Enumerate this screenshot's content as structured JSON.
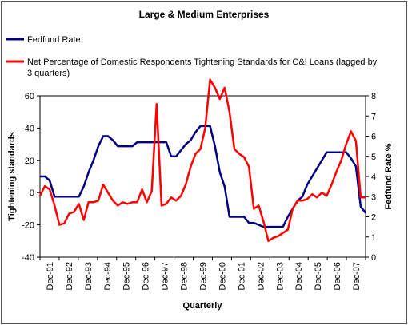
{
  "chart_data": {
    "type": "line",
    "title": "Large & Medium Enterprises",
    "xlabel": "Quarterly",
    "ylabel": "Tightening standards",
    "y2label": "Fedfund Rate %",
    "ylim": [
      -40,
      60
    ],
    "y2lim": [
      0,
      8
    ],
    "yticks": [
      -40,
      -20,
      0,
      20,
      40,
      60
    ],
    "y2ticks": [
      0,
      1,
      2,
      3,
      4,
      5,
      6,
      7,
      8
    ],
    "x_tick_labels": [
      "Dec-91",
      "Dec-92",
      "Dec-93",
      "Dec-94",
      "Dec-95",
      "Dec-96",
      "Dec-97",
      "Dec-98",
      "Dec-99",
      "Dec-00",
      "Dec-01",
      "Dec-02",
      "Dec-03",
      "Dec-04",
      "Dec-05",
      "Dec-06",
      "Dec-07"
    ],
    "legend_position": "top",
    "series": [
      {
        "name": "Fedfund Rate",
        "axis": "right",
        "color": "#000080",
        "values": [
          4.0,
          4.0,
          3.8,
          3.0,
          3.0,
          3.0,
          3.0,
          3.0,
          3.0,
          3.5,
          4.2,
          4.8,
          5.5,
          6.0,
          6.0,
          5.8,
          5.5,
          5.5,
          5.5,
          5.5,
          5.7,
          5.7,
          5.7,
          5.7,
          5.7,
          5.7,
          5.7,
          5.0,
          5.0,
          5.3,
          5.6,
          5.8,
          6.2,
          6.5,
          6.5,
          6.5,
          5.5,
          4.2,
          3.5,
          2.0,
          2.0,
          2.0,
          2.0,
          1.7,
          1.7,
          1.6,
          1.5,
          1.5,
          1.5,
          1.5,
          1.5,
          2.0,
          2.4,
          2.8,
          3.0,
          3.6,
          4.0,
          4.4,
          4.8,
          5.2,
          5.2,
          5.2,
          5.2,
          5.2,
          4.9,
          4.5,
          2.5,
          2.2
        ]
      },
      {
        "name": "Net Percentage of Domestic Respondents Tightening Standards for C&I Loans (lagged by 3 quarters)",
        "axis": "left",
        "color": "#FF0000",
        "values": [
          -2,
          4,
          2,
          -8,
          -20,
          -19,
          -13,
          -12,
          -7,
          -17,
          -6,
          -6,
          -5,
          5,
          0,
          -5,
          -8,
          -6,
          -7,
          -6,
          -6,
          2,
          -6,
          1,
          55,
          -8,
          -7,
          -3,
          -5,
          -2,
          5,
          16,
          24,
          27,
          40,
          70,
          65,
          58,
          65,
          50,
          27,
          24,
          22,
          16,
          -10,
          -8,
          -18,
          -30,
          -28,
          -27,
          -25,
          -23,
          -10,
          -5,
          -5,
          -4,
          -1,
          -3,
          0,
          -2,
          5,
          13,
          20,
          30,
          38,
          32,
          -3,
          -3
        ]
      }
    ]
  }
}
